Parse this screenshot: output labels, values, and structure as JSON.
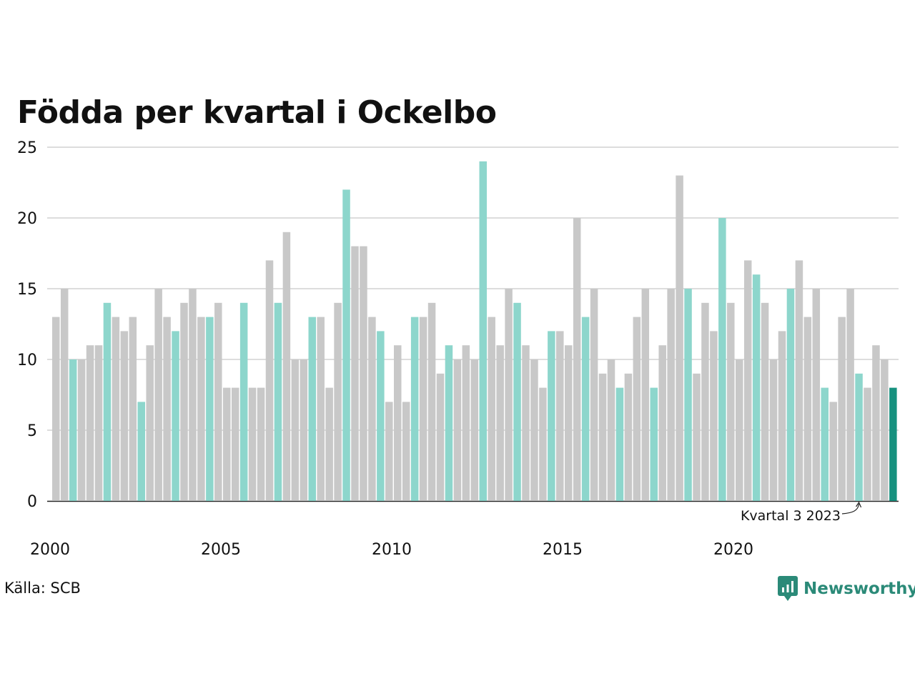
{
  "title": "Födda per kvartal i Ockelbo",
  "source": "Källa: SCB",
  "brand": {
    "name": "Newsworthy",
    "icon": "newsworthy-logo-icon",
    "color": "#2b8a78"
  },
  "colors": {
    "quarter": "#c8c8c8",
    "highlight": "#8dd6cc",
    "latest": "#17917f",
    "grid": "#dddddd",
    "axis": "#222222"
  },
  "chart_data": {
    "type": "bar",
    "title": "Födda per kvartal i Ockelbo",
    "xlabel": "",
    "ylabel": "",
    "ylim": [
      0,
      25
    ],
    "yticks": [
      "0",
      "5",
      "10",
      "15",
      "20",
      "25"
    ],
    "xtick_labels": [
      "2000",
      "2005",
      "2010",
      "2015",
      "2020"
    ],
    "start_year": 2000,
    "highlight_quarter": 3,
    "grid": true,
    "values": [
      13,
      15,
      10,
      10,
      11,
      11,
      14,
      13,
      12,
      13,
      7,
      11,
      15,
      13,
      12,
      14,
      15,
      13,
      13,
      14,
      8,
      8,
      14,
      8,
      8,
      17,
      14,
      19,
      10,
      10,
      13,
      13,
      8,
      14,
      22,
      18,
      18,
      13,
      12,
      7,
      11,
      7,
      13,
      13,
      14,
      9,
      11,
      10,
      11,
      10,
      24,
      13,
      11,
      15,
      14,
      11,
      10,
      8,
      12,
      12,
      11,
      20,
      13,
      15,
      9,
      10,
      8,
      9,
      13,
      15,
      8,
      11,
      15,
      23,
      15,
      9,
      14,
      12,
      20,
      14,
      10,
      17,
      16,
      14,
      10,
      12,
      15,
      17,
      13,
      15,
      8,
      7,
      13,
      15,
      9,
      8,
      11,
      10,
      8
    ],
    "annotation": "Kvartal 3 2023"
  }
}
